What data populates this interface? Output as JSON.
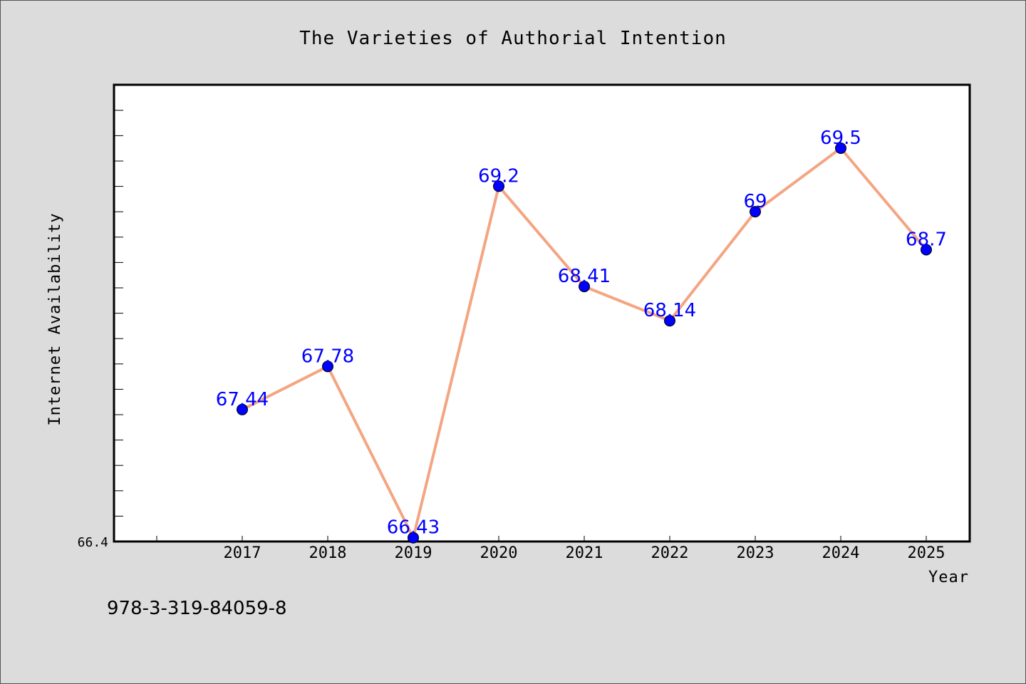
{
  "chart_data": {
    "type": "line",
    "title": "The Varieties of Authorial Intention",
    "xlabel": "Year",
    "ylabel": "Internet Availability",
    "categories": [
      "2017",
      "2018",
      "2019",
      "2020",
      "2021",
      "2022",
      "2023",
      "2024",
      "2025"
    ],
    "series": [
      {
        "values": [
          67.44,
          67.78,
          66.43,
          69.2,
          68.41,
          68.14,
          69,
          69.5,
          68.7
        ],
        "labels": [
          "67.44",
          "67.78",
          "66.43",
          "69.2",
          "68.41",
          "68.14",
          "69",
          "69.5",
          "68.7"
        ]
      }
    ],
    "ylim": [
      66.4,
      70.0
    ],
    "y_tick_label": "66.4",
    "line_color": "#f4a582",
    "marker_color": "#0000ff",
    "label_color": "#0000ff",
    "grid": false
  },
  "footer": {
    "isbn": "978-3-319-84059-8"
  }
}
